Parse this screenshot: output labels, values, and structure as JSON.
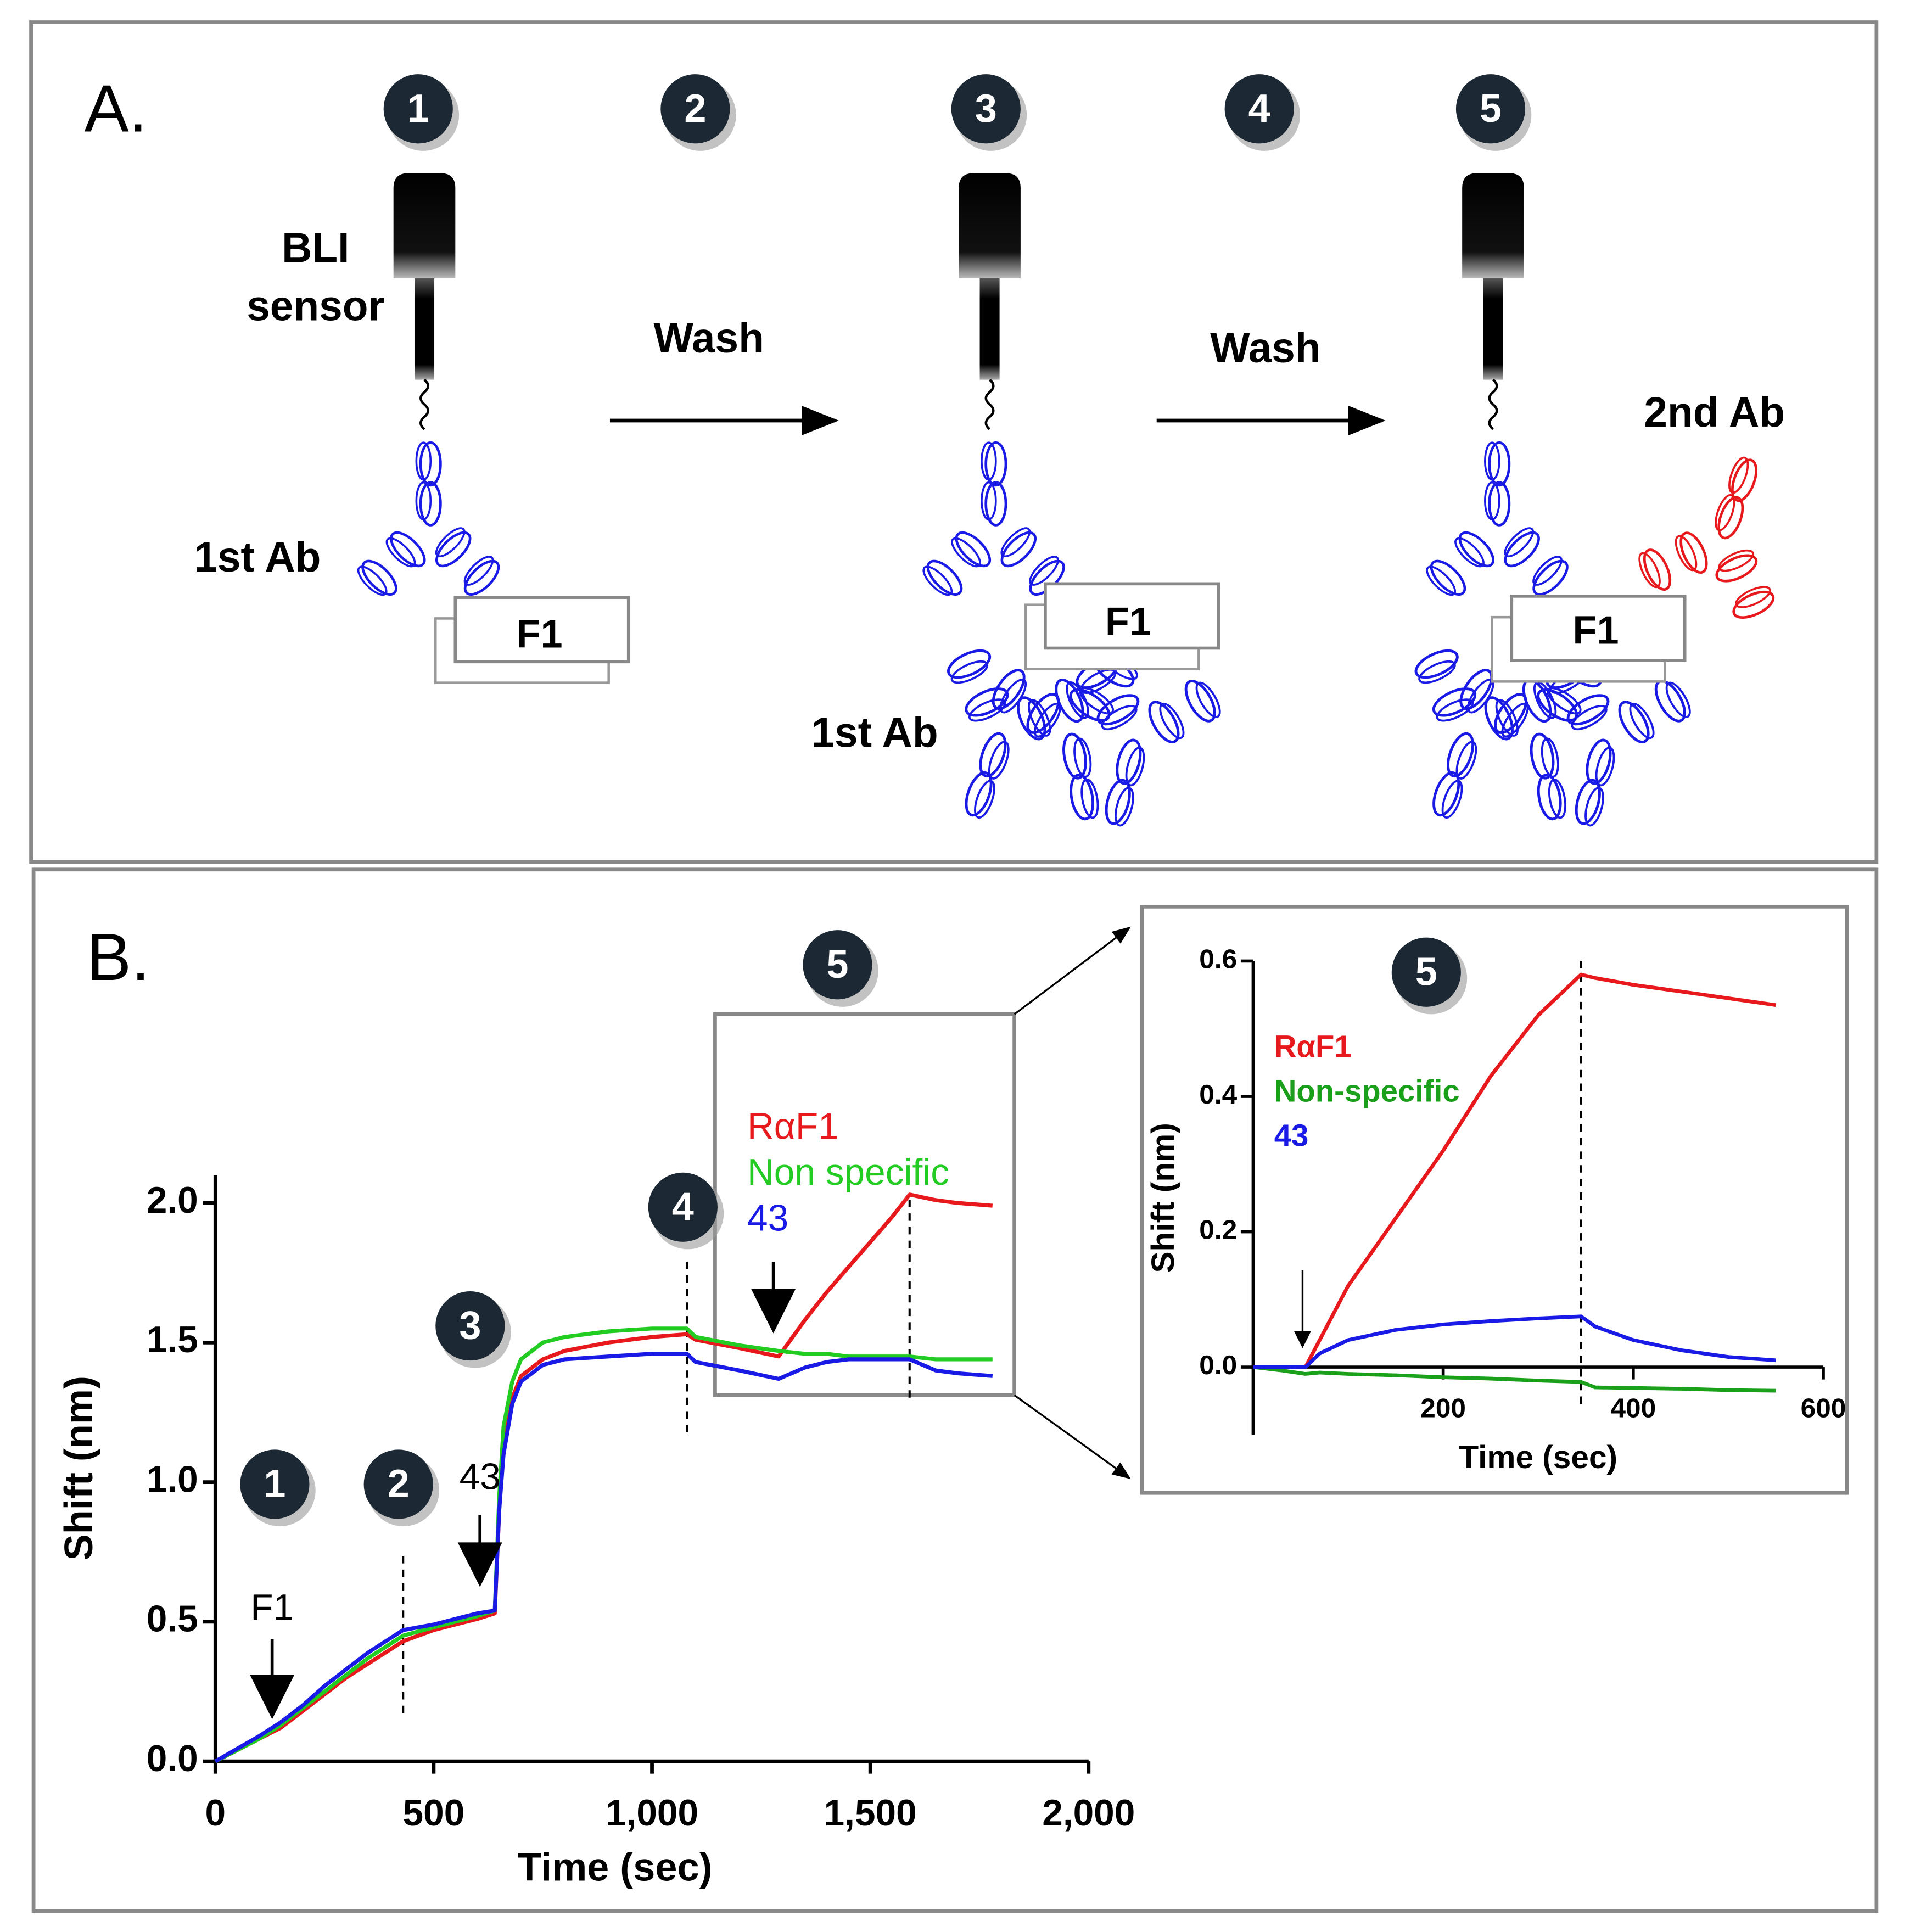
{
  "panel_a": {
    "label": "A.",
    "steps": [
      "1",
      "2",
      "3",
      "4",
      "5"
    ],
    "sensor_label": [
      "BLI",
      "sensor"
    ],
    "washes": [
      "Wash",
      "Wash"
    ],
    "first_ab": [
      "1st Ab",
      "1st Ab"
    ],
    "antigen": [
      "F1",
      "F1",
      "F1"
    ],
    "second_ab": "2nd Ab"
  },
  "panel_b": {
    "label": "B."
  },
  "chart_data": [
    {
      "type": "line",
      "xlabel": "Time (sec)",
      "ylabel": "Shift (nm)",
      "xlim": [
        0,
        2000
      ],
      "ylim": [
        0,
        2.1
      ],
      "xticks": [
        0,
        500,
        {
          "value": 1000,
          "label": "1,000"
        },
        {
          "value": 1500,
          "label": "1,500"
        },
        {
          "value": 2000,
          "label": "2,000"
        }
      ],
      "yticks": [
        {
          "value": 0,
          "label": "0.0"
        },
        {
          "value": 0.5,
          "label": "0.5"
        },
        {
          "value": 1,
          "label": "1.0"
        },
        {
          "value": 1.5,
          "label": "1.5"
        },
        {
          "value": 2,
          "label": "2.0"
        }
      ],
      "x": [
        0,
        50,
        100,
        150,
        200,
        250,
        300,
        350,
        400,
        430,
        500,
        550,
        600,
        640,
        650,
        660,
        680,
        700,
        750,
        800,
        900,
        1000,
        1080,
        1100,
        1200,
        1290,
        1350,
        1400,
        1450,
        1500,
        1550,
        1590,
        1650,
        1700,
        1780
      ],
      "series": [
        {
          "name": "RαF1",
          "color": "#e8191c",
          "values": [
            0,
            0.04,
            0.08,
            0.12,
            0.18,
            0.24,
            0.3,
            0.35,
            0.4,
            0.43,
            0.47,
            0.49,
            0.51,
            0.53,
            0.9,
            1.15,
            1.3,
            1.38,
            1.44,
            1.47,
            1.5,
            1.52,
            1.53,
            1.51,
            1.48,
            1.45,
            1.58,
            1.68,
            1.77,
            1.86,
            1.95,
            2.03,
            2.01,
            2,
            1.99
          ]
        },
        {
          "name": "Non specific",
          "color": "#22cc22",
          "values": [
            0,
            0.04,
            0.08,
            0.13,
            0.19,
            0.25,
            0.31,
            0.37,
            0.42,
            0.45,
            0.48,
            0.5,
            0.52,
            0.54,
            0.95,
            1.2,
            1.36,
            1.44,
            1.5,
            1.52,
            1.54,
            1.55,
            1.55,
            1.52,
            1.49,
            1.47,
            1.46,
            1.46,
            1.45,
            1.45,
            1.45,
            1.45,
            1.44,
            1.44,
            1.44
          ]
        },
        {
          "name": "43",
          "color": "#1a1ae6",
          "values": [
            0,
            0.045,
            0.09,
            0.14,
            0.2,
            0.27,
            0.33,
            0.39,
            0.44,
            0.47,
            0.49,
            0.51,
            0.53,
            0.54,
            0.9,
            1.1,
            1.28,
            1.36,
            1.42,
            1.44,
            1.45,
            1.46,
            1.46,
            1.43,
            1.4,
            1.37,
            1.41,
            1.43,
            1.44,
            1.44,
            1.44,
            1.44,
            1.4,
            1.39,
            1.38
          ]
        }
      ],
      "vlines": [
        430,
        1080,
        1590
      ],
      "arrows": [
        {
          "x": 130,
          "label": "F1"
        },
        {
          "x": 606,
          "label": "43"
        },
        {
          "x": 1278
        }
      ],
      "steps": [
        "1",
        "2",
        "3",
        "4",
        "5"
      ]
    },
    {
      "type": "line",
      "xlabel": "Time (sec)",
      "ylabel": "Shift (nm)",
      "xlim": [
        0,
        600
      ],
      "ylim": [
        -0.1,
        0.6
      ],
      "xticks": [
        200,
        400,
        600
      ],
      "yticks": [
        {
          "value": 0,
          "label": "0.0"
        },
        {
          "value": 0.2,
          "label": "0.2"
        },
        {
          "value": 0.4,
          "label": "0.4"
        },
        {
          "value": 0.6,
          "label": "0.6"
        }
      ],
      "x": [
        0,
        30,
        55,
        70,
        100,
        150,
        200,
        250,
        300,
        345,
        360,
        400,
        450,
        500,
        550
      ],
      "series": [
        {
          "name": "RαF1",
          "color": "#e8191c",
          "values": [
            0,
            0,
            0,
            0.04,
            0.12,
            0.22,
            0.32,
            0.43,
            0.52,
            0.58,
            0.575,
            0.565,
            0.555,
            0.545,
            0.535
          ]
        },
        {
          "name": "Non-specific",
          "color": "#1aa01a",
          "values": [
            0,
            -0.005,
            -0.01,
            -0.008,
            -0.01,
            -0.012,
            -0.015,
            -0.017,
            -0.02,
            -0.022,
            -0.03,
            -0.031,
            -0.032,
            -0.034,
            -0.035
          ]
        },
        {
          "name": "43",
          "color": "#1a1ae6",
          "values": [
            0,
            0,
            0,
            0.02,
            0.04,
            0.055,
            0.063,
            0.068,
            0.072,
            0.075,
            0.06,
            0.04,
            0.025,
            0.015,
            0.01
          ]
        }
      ],
      "vlines": [
        345
      ],
      "arrows": [
        {
          "x": 52
        }
      ],
      "steps": [
        "5"
      ]
    }
  ]
}
